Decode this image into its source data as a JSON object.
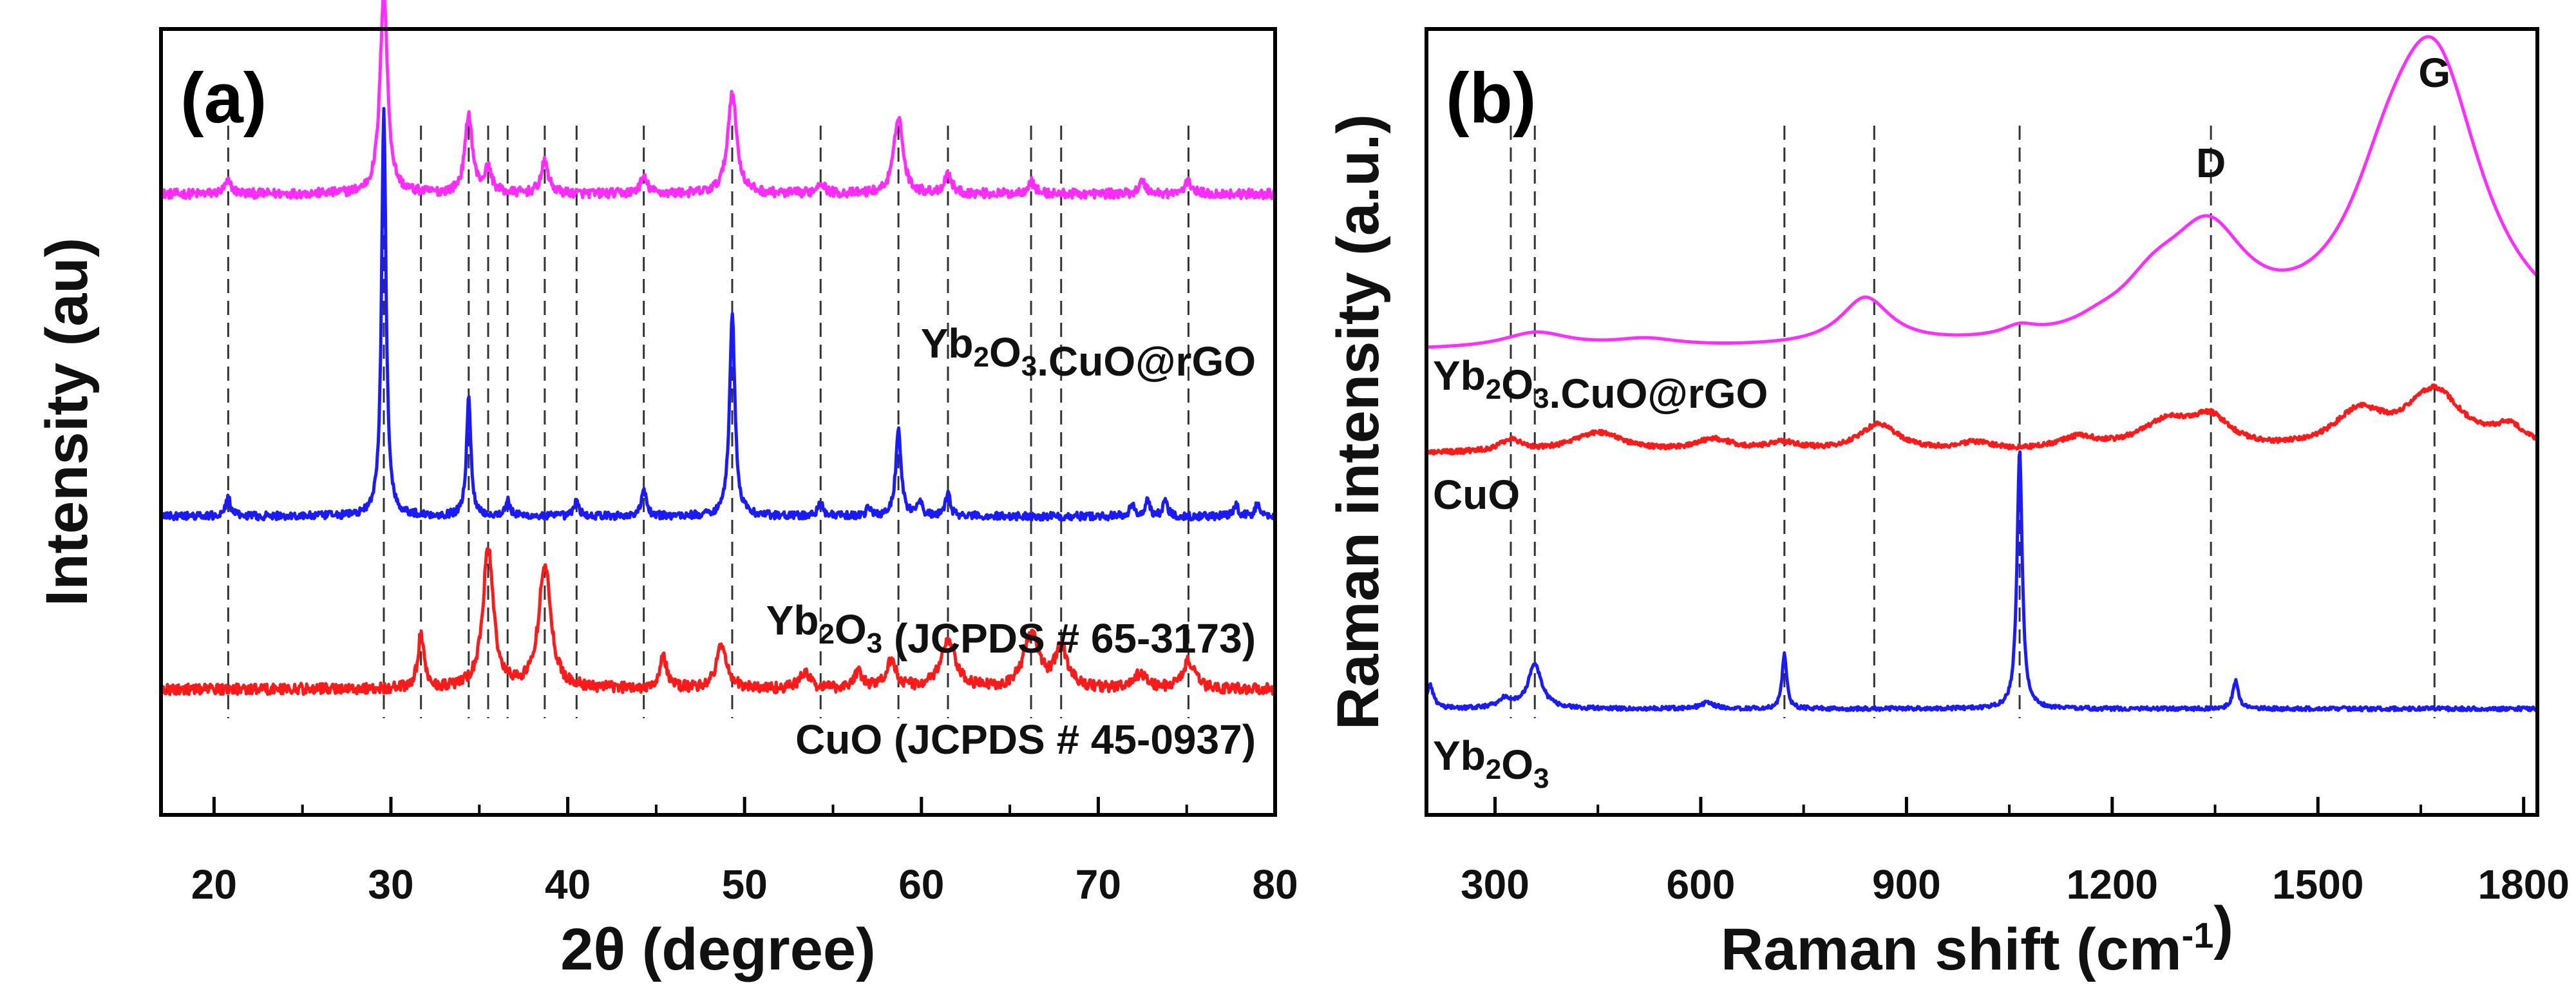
{
  "chart_data": [
    {
      "id": "a",
      "panel_label": "(a)",
      "type": "line",
      "xlabel": "2θ (degree)",
      "ylabel": "Intensity (au)",
      "xlim": [
        17,
        80
      ],
      "ylim": [
        0,
        10
      ],
      "xticks": [
        20,
        30,
        40,
        50,
        60,
        70,
        80
      ],
      "minor_xticks": [
        25,
        35,
        45,
        55,
        65,
        75
      ],
      "reference_lines": [
        20.8,
        29.6,
        31.7,
        34.4,
        35.5,
        36.6,
        38.7,
        40.5,
        44.3,
        49.3,
        54.3,
        58.7,
        61.5,
        66.2,
        67.9,
        75.1
      ],
      "series": [
        {
          "name": "Yb2O3.CuO@rGO",
          "label_parts": [
            {
              "t": "Yb"
            },
            {
              "t": "2",
              "sub": true
            },
            {
              "t": "O"
            },
            {
              "t": "3",
              "sub": true
            },
            {
              "t": ".CuO@rGO"
            }
          ],
          "color": "#ff2bff",
          "baseline": 7.9,
          "noise": 0.06,
          "peaks": [
            [
              20.8,
              0.15,
              0.25
            ],
            [
              29.6,
              2.6,
              0.25
            ],
            [
              34.4,
              1.0,
              0.25
            ],
            [
              35.5,
              0.3,
              0.25
            ],
            [
              38.7,
              0.4,
              0.25
            ],
            [
              44.3,
              0.2,
              0.25
            ],
            [
              49.3,
              1.3,
              0.3
            ],
            [
              54.3,
              0.15,
              0.25
            ],
            [
              58.7,
              1.0,
              0.3
            ],
            [
              61.5,
              0.25,
              0.25
            ],
            [
              66.2,
              0.15,
              0.25
            ],
            [
              72.5,
              0.15,
              0.25
            ],
            [
              75.1,
              0.15,
              0.25
            ]
          ]
        },
        {
          "name": "Yb2O3 (JCPDS # 65-3173)",
          "label_parts": [
            {
              "t": "Yb"
            },
            {
              "t": "2",
              "sub": true
            },
            {
              "t": "O"
            },
            {
              "t": "3",
              "sub": true
            },
            {
              "t": " (JCPDS # 65-3173)"
            }
          ],
          "color": "#1a1aff",
          "baseline": 3.8,
          "noise": 0.05,
          "peaks": [
            [
              20.8,
              0.25,
              0.15
            ],
            [
              29.6,
              5.2,
              0.15
            ],
            [
              34.4,
              1.5,
              0.15
            ],
            [
              36.6,
              0.2,
              0.15
            ],
            [
              40.5,
              0.2,
              0.15
            ],
            [
              44.3,
              0.35,
              0.15
            ],
            [
              49.3,
              2.6,
              0.18
            ],
            [
              54.3,
              0.2,
              0.15
            ],
            [
              57.0,
              0.1,
              0.15
            ],
            [
              58.7,
              1.1,
              0.18
            ],
            [
              59.9,
              0.2,
              0.15
            ],
            [
              61.5,
              0.3,
              0.15
            ],
            [
              71.9,
              0.15,
              0.15
            ],
            [
              72.8,
              0.2,
              0.15
            ],
            [
              73.8,
              0.2,
              0.15
            ],
            [
              77.8,
              0.15,
              0.15
            ],
            [
              79.0,
              0.15,
              0.15
            ]
          ]
        },
        {
          "name": "CuO (JCPDS # 45-0937)",
          "label_parts": [
            {
              "t": "CuO (JCPDS # 45-0937)"
            }
          ],
          "color": "#ff1a1a",
          "baseline": 1.6,
          "noise": 0.07,
          "peaks": [
            [
              31.7,
              0.7,
              0.2
            ],
            [
              35.5,
              1.8,
              0.35
            ],
            [
              38.7,
              1.6,
              0.4
            ],
            [
              45.4,
              0.4,
              0.25
            ],
            [
              48.7,
              0.55,
              0.35
            ],
            [
              53.4,
              0.2,
              0.35
            ],
            [
              56.4,
              0.2,
              0.3
            ],
            [
              58.3,
              0.35,
              0.35
            ],
            [
              61.5,
              0.6,
              0.5
            ],
            [
              66.2,
              0.7,
              0.5
            ],
            [
              67.9,
              0.5,
              0.45
            ],
            [
              72.4,
              0.2,
              0.35
            ],
            [
              75.1,
              0.35,
              0.4
            ]
          ]
        }
      ]
    },
    {
      "id": "b",
      "panel_label": "(b)",
      "type": "line",
      "xlabel": "Raman shift (cm-1)",
      "xlabel_parts": [
        {
          "t": "Raman shift (cm"
        },
        {
          "t": "-1",
          "sup": true
        },
        {
          "t": ")"
        }
      ],
      "ylabel": "Raman intensity (a.u.)",
      "xlim": [
        200,
        1820
      ],
      "ylim": [
        0,
        10
      ],
      "xticks": [
        300,
        600,
        900,
        1200,
        1500,
        1800
      ],
      "minor_xticks": [
        450,
        750,
        1050,
        1350,
        1650
      ],
      "reference_lines": [
        323,
        358,
        722,
        853,
        1065,
        1344,
        1670
      ],
      "band_labels": [
        {
          "text": "D",
          "x": 1344
        },
        {
          "text": "G",
          "x": 1670
        }
      ],
      "series": [
        {
          "name": "Yb2O3.CuO@rGO",
          "label_parts": [
            {
              "t": "Yb"
            },
            {
              "t": "2",
              "sub": true
            },
            {
              "t": "O"
            },
            {
              "t": "3",
              "sub": true
            },
            {
              "t": ".CuO@rGO"
            }
          ],
          "color": "#ff2bff",
          "baseline": 5.9,
          "noise": 0.0,
          "peaks": [
            [
              360,
              0.2,
              60
            ],
            [
              520,
              0.1,
              60
            ],
            [
              840,
              0.6,
              45
            ],
            [
              1065,
              0.12,
              30
            ],
            [
              1180,
              0.08,
              40
            ],
            [
              1340,
              1.25,
              70
            ],
            [
              1260,
              0.5,
              60
            ],
            [
              1670,
              3.4,
              85
            ],
            [
              1600,
              1.0,
              70
            ]
          ]
        },
        {
          "name": "CuO",
          "label_parts": [
            {
              "t": "CuO"
            }
          ],
          "color": "#ff1a1a",
          "baseline": 4.6,
          "noise": 0.03,
          "peaks": [
            [
              323,
              0.15,
              20
            ],
            [
              450,
              0.25,
              45
            ],
            [
              620,
              0.15,
              35
            ],
            [
              720,
              0.1,
              30
            ],
            [
              860,
              0.35,
              35
            ],
            [
              1000,
              0.1,
              30
            ],
            [
              1150,
              0.15,
              35
            ],
            [
              1280,
              0.35,
              50
            ],
            [
              1344,
              0.35,
              35
            ],
            [
              1560,
              0.45,
              45
            ],
            [
              1670,
              0.75,
              50
            ],
            [
              1780,
              0.25,
              30
            ]
          ]
        },
        {
          "name": "Yb2O3",
          "label_parts": [
            {
              "t": "Yb"
            },
            {
              "t": "2",
              "sub": true
            },
            {
              "t": "O"
            },
            {
              "t": "3",
              "sub": true
            }
          ],
          "color": "#1a1aff",
          "baseline": 1.35,
          "noise": 0.025,
          "peaks": [
            [
              205,
              0.3,
              6
            ],
            [
              315,
              0.12,
              12
            ],
            [
              358,
              0.55,
              12
            ],
            [
              610,
              0.08,
              12
            ],
            [
              722,
              0.7,
              4
            ],
            [
              1065,
              3.3,
              4.5
            ],
            [
              1380,
              0.35,
              5
            ]
          ]
        }
      ]
    }
  ]
}
